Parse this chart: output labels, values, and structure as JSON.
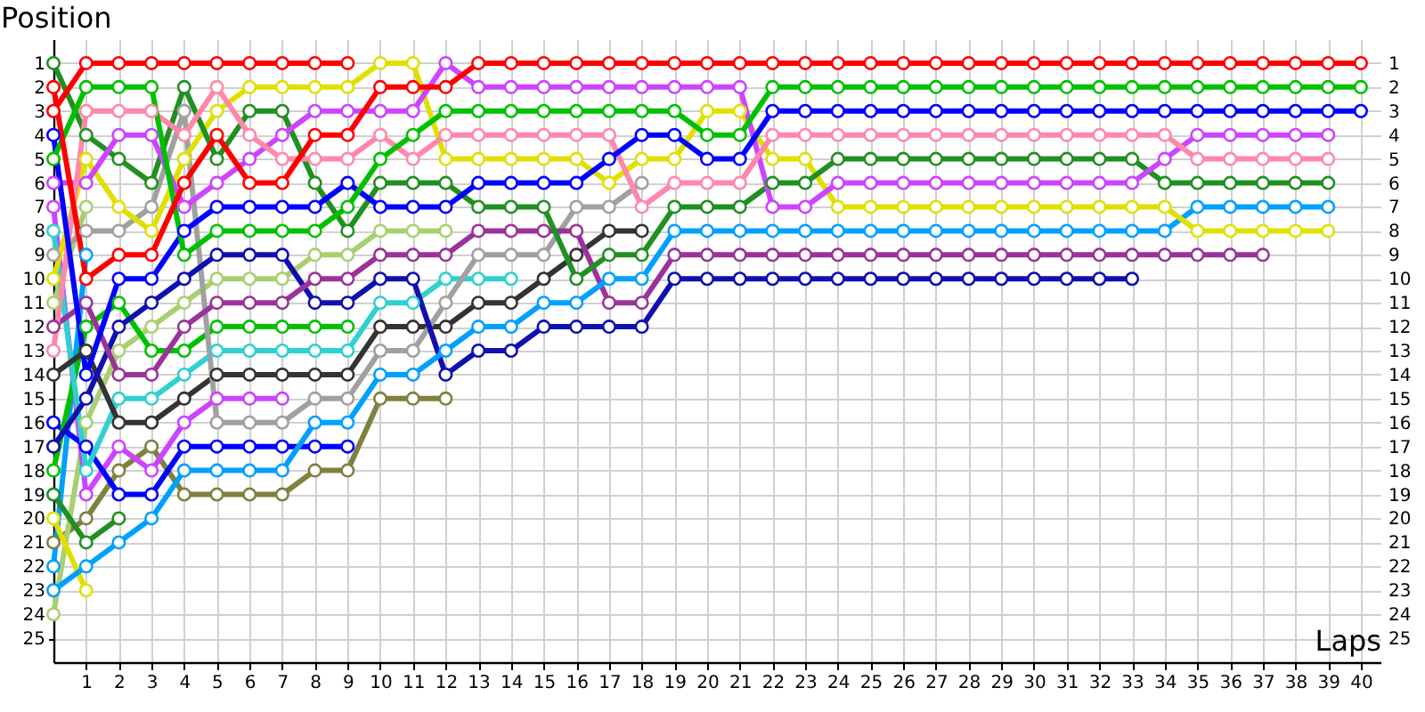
{
  "chart_data": {
    "type": "line",
    "xlabel": "Laps",
    "ylabel": "Position",
    "x": [
      0,
      1,
      2,
      3,
      4,
      5,
      6,
      7,
      8,
      9,
      10,
      11,
      12,
      13,
      14,
      15,
      16,
      17,
      18,
      19,
      20,
      21,
      22,
      23,
      24,
      25,
      26,
      27,
      28,
      29,
      30,
      31,
      32,
      33,
      34,
      35,
      36,
      37,
      38,
      39,
      40
    ],
    "xlim": [
      0,
      40.6
    ],
    "xticks": [
      1,
      2,
      3,
      4,
      5,
      6,
      7,
      8,
      9,
      10,
      11,
      12,
      13,
      14,
      15,
      16,
      17,
      18,
      19,
      20,
      21,
      22,
      23,
      24,
      25,
      26,
      27,
      28,
      29,
      30,
      31,
      32,
      33,
      34,
      35,
      36,
      37,
      38,
      39,
      40
    ],
    "ylim": [
      26,
      0
    ],
    "yticks": [
      1,
      2,
      3,
      4,
      5,
      6,
      7,
      8,
      9,
      10,
      11,
      12,
      13,
      14,
      15,
      16,
      17,
      18,
      19,
      20,
      21,
      22,
      23,
      24,
      25
    ],
    "y2lim": [
      26,
      0
    ],
    "y2ticks": [
      1,
      2,
      3,
      4,
      5,
      6,
      7,
      8,
      9,
      10,
      11,
      12,
      13,
      14,
      15,
      16,
      17,
      18,
      19,
      20,
      21,
      22,
      23,
      24,
      25
    ],
    "grid": true,
    "marker": "circle",
    "line_style": "solid",
    "series": [
      {
        "color": "#808040",
        "values": [
          21,
          20,
          18,
          17,
          19,
          19,
          19,
          19,
          18,
          18,
          15,
          15,
          15,
          null,
          null,
          null,
          null,
          null,
          null,
          null,
          null,
          null,
          null,
          null,
          null,
          null,
          null,
          null,
          null,
          null,
          null,
          null,
          null,
          null,
          null,
          null,
          null,
          null,
          null,
          null,
          null
        ]
      },
      {
        "color": "#a8d070",
        "values": [
          24,
          16,
          13,
          12,
          11,
          10,
          10,
          10,
          9,
          9,
          8,
          8,
          8,
          null,
          null,
          null,
          null,
          null,
          null,
          null,
          null,
          null,
          null,
          null,
          null,
          null,
          null,
          null,
          null,
          null,
          null,
          null,
          null,
          null,
          null,
          null,
          null,
          null,
          null,
          null,
          null
        ]
      },
      {
        "color": "#a8d070",
        "values": [
          11,
          7,
          null,
          null,
          null,
          null,
          null,
          null,
          null,
          null,
          null,
          null,
          null,
          null,
          null,
          null,
          null,
          null,
          null,
          null,
          null,
          null,
          null,
          null,
          null,
          null,
          null,
          null,
          null,
          null,
          null,
          null,
          null,
          null,
          null,
          null,
          null,
          null,
          null,
          null,
          null
        ]
      },
      {
        "color": "#00a0ff",
        "values": [
          22,
          9,
          null,
          null,
          null,
          null,
          null,
          null,
          null,
          null,
          null,
          null,
          null,
          null,
          null,
          null,
          null,
          null,
          null,
          null,
          null,
          null,
          null,
          null,
          null,
          null,
          null,
          null,
          null,
          null,
          null,
          null,
          null,
          null,
          null,
          null,
          null,
          null,
          null,
          null,
          null
        ]
      },
      {
        "color": "#209020",
        "values": [
          19,
          21,
          20,
          null,
          null,
          null,
          null,
          null,
          null,
          null,
          null,
          null,
          null,
          null,
          null,
          null,
          null,
          null,
          null,
          null,
          null,
          null,
          null,
          null,
          null,
          null,
          null,
          null,
          null,
          null,
          null,
          null,
          null,
          null,
          null,
          null,
          null,
          null,
          null,
          null,
          null
        ]
      },
      {
        "color": "#e0e000",
        "values": [
          20,
          23,
          null,
          null,
          null,
          null,
          null,
          null,
          null,
          null,
          null,
          null,
          null,
          null,
          null,
          null,
          null,
          null,
          null,
          null,
          null,
          null,
          null,
          null,
          null,
          null,
          null,
          null,
          null,
          null,
          null,
          null,
          null,
          null,
          null,
          null,
          null,
          null,
          null,
          null,
          null
        ]
      },
      {
        "color": "#cc44ff",
        "values": [
          7,
          19,
          17,
          18,
          16,
          15,
          15,
          15,
          null,
          null,
          null,
          null,
          null,
          null,
          null,
          null,
          null,
          null,
          null,
          null,
          null,
          null,
          null,
          null,
          null,
          null,
          null,
          null,
          null,
          null,
          null,
          null,
          null,
          null,
          null,
          null,
          null,
          null,
          null,
          null,
          null
        ]
      },
      {
        "color": "#0000ff",
        "values": [
          16,
          17,
          19,
          19,
          17,
          17,
          17,
          17,
          17,
          17,
          null,
          null,
          null,
          null,
          null,
          null,
          null,
          null,
          null,
          null,
          null,
          null,
          null,
          null,
          null,
          null,
          null,
          null,
          null,
          null,
          null,
          null,
          null,
          null,
          null,
          null,
          null,
          null,
          null,
          null,
          null
        ]
      },
      {
        "color": "#00c000",
        "values": [
          18,
          12,
          11,
          13,
          13,
          12,
          12,
          12,
          12,
          12,
          null,
          null,
          null,
          null,
          null,
          null,
          null,
          null,
          null,
          null,
          null,
          null,
          null,
          null,
          null,
          null,
          null,
          null,
          null,
          null,
          null,
          null,
          null,
          null,
          null,
          null,
          null,
          null,
          null,
          null,
          null
        ]
      },
      {
        "color": "#30d0d0",
        "values": [
          8,
          18,
          15,
          15,
          14,
          13,
          13,
          13,
          13,
          13,
          11,
          11,
          10,
          10,
          10,
          null,
          null,
          null,
          null,
          null,
          null,
          null,
          null,
          null,
          null,
          null,
          null,
          null,
          null,
          null,
          null,
          null,
          null,
          null,
          null,
          null,
          null,
          null,
          null,
          null,
          null
        ]
      },
      {
        "color": "#333333",
        "values": [
          14,
          13,
          16,
          16,
          15,
          14,
          14,
          14,
          14,
          14,
          12,
          12,
          12,
          11,
          11,
          10,
          9,
          8,
          8,
          null,
          null,
          null,
          null,
          null,
          null,
          null,
          null,
          null,
          null,
          null,
          null,
          null,
          null,
          null,
          null,
          null,
          null,
          null,
          null,
          null,
          null
        ]
      },
      {
        "color": "#a0a0a0",
        "values": [
          9,
          8,
          8,
          7,
          3,
          16,
          16,
          16,
          15,
          15,
          13,
          13,
          11,
          9,
          9,
          9,
          7,
          7,
          6,
          null,
          null,
          null,
          null,
          null,
          null,
          null,
          null,
          null,
          null,
          null,
          null,
          null,
          null,
          null,
          null,
          null,
          null,
          null,
          null,
          null,
          null
        ]
      },
      {
        "color": "#1010b0",
        "values": [
          17,
          15,
          12,
          11,
          10,
          9,
          9,
          9,
          11,
          11,
          10,
          10,
          14,
          13,
          13,
          12,
          12,
          12,
          12,
          10,
          10,
          10,
          10,
          10,
          10,
          10,
          10,
          10,
          10,
          10,
          10,
          10,
          10,
          10,
          null,
          null,
          null,
          null,
          null,
          null,
          null
        ]
      },
      {
        "color": "#993399",
        "values": [
          12,
          11,
          14,
          14,
          12,
          11,
          11,
          11,
          10,
          10,
          9,
          9,
          9,
          8,
          8,
          8,
          8,
          11,
          11,
          9,
          9,
          9,
          9,
          9,
          9,
          9,
          9,
          9,
          9,
          9,
          9,
          9,
          9,
          9,
          9,
          9,
          9,
          9,
          null,
          null,
          null
        ]
      },
      {
        "color": "#00a0ff",
        "values": [
          23,
          22,
          21,
          20,
          18,
          18,
          18,
          18,
          16,
          16,
          14,
          14,
          13,
          12,
          12,
          11,
          11,
          10,
          10,
          8,
          8,
          8,
          8,
          8,
          8,
          8,
          8,
          8,
          8,
          8,
          8,
          8,
          8,
          8,
          8,
          7,
          7,
          7,
          7,
          7,
          null
        ]
      },
      {
        "color": "#e0e000",
        "values": [
          10,
          5,
          7,
          8,
          5,
          3,
          2,
          2,
          2,
          2,
          1,
          1,
          5,
          5,
          5,
          5,
          5,
          6,
          5,
          5,
          3,
          3,
          5,
          5,
          7,
          7,
          7,
          7,
          7,
          7,
          7,
          7,
          7,
          7,
          7,
          8,
          8,
          8,
          8,
          8,
          null
        ]
      },
      {
        "color": "#209020",
        "values": [
          1,
          4,
          5,
          6,
          2,
          5,
          3,
          3,
          6,
          8,
          6,
          6,
          6,
          7,
          7,
          7,
          10,
          9,
          9,
          7,
          7,
          7,
          6,
          6,
          5,
          5,
          5,
          5,
          5,
          5,
          5,
          5,
          5,
          5,
          6,
          6,
          6,
          6,
          6,
          6,
          null
        ]
      },
      {
        "color": "#cc44ff",
        "values": [
          6,
          6,
          4,
          4,
          7,
          6,
          5,
          4,
          3,
          3,
          3,
          3,
          1,
          2,
          2,
          2,
          2,
          2,
          2,
          2,
          2,
          2,
          7,
          7,
          6,
          6,
          6,
          6,
          6,
          6,
          6,
          6,
          6,
          6,
          5,
          4,
          4,
          4,
          4,
          4,
          null
        ]
      },
      {
        "color": "#ff88aa",
        "values": [
          13,
          3,
          3,
          3,
          4,
          2,
          4,
          5,
          5,
          5,
          4,
          5,
          4,
          4,
          4,
          4,
          4,
          4,
          7,
          6,
          6,
          6,
          4,
          4,
          4,
          4,
          4,
          4,
          4,
          4,
          4,
          4,
          4,
          4,
          4,
          5,
          5,
          5,
          5,
          5,
          null
        ]
      },
      {
        "color": "#0000ff",
        "values": [
          4,
          14,
          10,
          10,
          8,
          7,
          7,
          7,
          7,
          6,
          7,
          7,
          7,
          6,
          6,
          6,
          6,
          5,
          4,
          4,
          5,
          5,
          3,
          3,
          3,
          3,
          3,
          3,
          3,
          3,
          3,
          3,
          3,
          3,
          3,
          3,
          3,
          3,
          3,
          3,
          3
        ]
      },
      {
        "color": "#00c000",
        "values": [
          5,
          2,
          2,
          2,
          9,
          8,
          8,
          8,
          8,
          7,
          5,
          4,
          3,
          3,
          3,
          3,
          3,
          3,
          3,
          3,
          4,
          4,
          2,
          2,
          2,
          2,
          2,
          2,
          2,
          2,
          2,
          2,
          2,
          2,
          2,
          2,
          2,
          2,
          2,
          2,
          2
        ]
      },
      {
        "color": "#ff0000",
        "values": [
          3,
          1,
          1,
          1,
          1,
          1,
          1,
          1,
          1,
          1,
          null,
          null,
          null,
          null,
          null,
          null,
          null,
          null,
          null,
          null,
          null,
          null,
          null,
          null,
          null,
          null,
          null,
          null,
          null,
          null,
          null,
          null,
          null,
          null,
          null,
          null,
          null,
          null,
          null,
          null,
          null
        ]
      },
      {
        "color": "#ff0000",
        "values": [
          2,
          10,
          9,
          9,
          6,
          4,
          6,
          6,
          4,
          4,
          2,
          2,
          2,
          1,
          1,
          1,
          1,
          1,
          1,
          1,
          1,
          1,
          1,
          1,
          1,
          1,
          1,
          1,
          1,
          1,
          1,
          1,
          1,
          1,
          1,
          1,
          1,
          1,
          1,
          1,
          1
        ]
      }
    ]
  }
}
